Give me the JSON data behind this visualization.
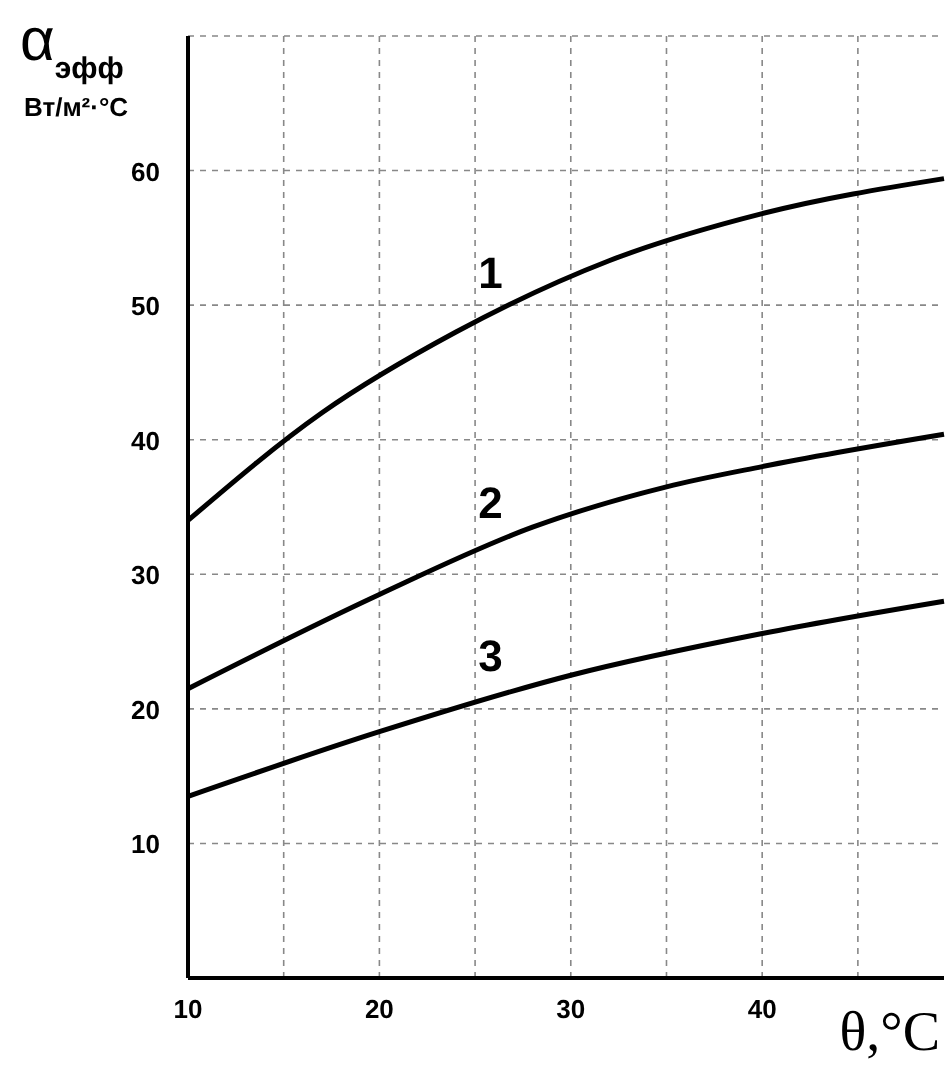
{
  "chart_data": {
    "type": "line",
    "xlabel": "θ,°C",
    "ylabel": "α$_{эфф}$\nВт/м²·°С",
    "xlim": [
      10,
      49.5
    ],
    "xticks": [
      10,
      20,
      30,
      40
    ],
    "ylim": [
      0,
      70
    ],
    "yticks": [
      10,
      20,
      30,
      40,
      50,
      60
    ],
    "grid": true,
    "line_style": "solid",
    "marker": "none",
    "series": [
      {
        "name": "1",
        "color": "#000000",
        "x": [
          10,
          17,
          24,
          32,
          40,
          49.5
        ],
        "values": [
          34,
          42,
          48,
          53.3,
          56.8,
          59.4
        ]
      },
      {
        "name": "2",
        "color": "#000000",
        "x": [
          10,
          20,
          28,
          35,
          40,
          49.5
        ],
        "values": [
          21.5,
          28.5,
          33.5,
          36.5,
          38,
          40.4
        ]
      },
      {
        "name": "3",
        "color": "#000000",
        "x": [
          10,
          20,
          30,
          40,
          49.5
        ],
        "values": [
          13.5,
          18.3,
          22.5,
          25.6,
          28
        ]
      }
    ]
  }
}
